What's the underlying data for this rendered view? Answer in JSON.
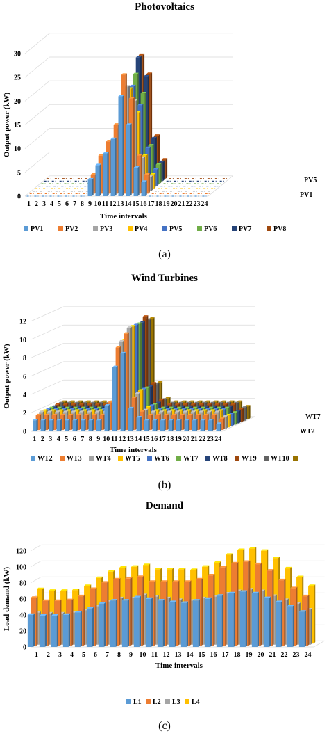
{
  "chart_data": [
    {
      "type": "bar",
      "subtype": "3d-clustered",
      "title": "Photovoltaics",
      "xlabel": "Time intervals",
      "ylabel": "Output power (kW)",
      "ylim": [
        0,
        30
      ],
      "yticks": [
        0,
        5,
        10,
        15,
        20,
        25,
        30
      ],
      "categories": [
        "1",
        "2",
        "3",
        "4",
        "5",
        "6",
        "7",
        "8",
        "9",
        "10",
        "11",
        "12",
        "13",
        "14",
        "15",
        "16",
        "17",
        "18",
        "19",
        "20",
        "21",
        "22",
        "23",
        "24"
      ],
      "depth_labels": [
        "PV5",
        "PV1"
      ],
      "caption": "(a)",
      "legend_position": "bottom",
      "series": [
        {
          "name": "PV1",
          "color": "#5b9bd5",
          "values": [
            0,
            0,
            0,
            0,
            0,
            0,
            0,
            0,
            3.5,
            6.5,
            9,
            12,
            21,
            15,
            6,
            3,
            0,
            0,
            0,
            0,
            0,
            0,
            0,
            0
          ]
        },
        {
          "name": "PV2",
          "color": "#ed7d31",
          "values": [
            0,
            0,
            0,
            0,
            0,
            0,
            0,
            0,
            4,
            8,
            11,
            14.5,
            25,
            20,
            8,
            4,
            0,
            0,
            0,
            0,
            0,
            0,
            0,
            0
          ]
        },
        {
          "name": "PV3",
          "color": "#a5a5a5",
          "values": [
            0,
            0,
            0,
            0,
            0,
            0,
            0,
            0,
            3,
            7,
            10,
            13,
            22,
            19,
            7,
            3,
            0,
            0,
            0,
            0,
            0,
            0,
            0,
            0
          ]
        },
        {
          "name": "PV4",
          "color": "#ffc000",
          "values": [
            0,
            0,
            0,
            0,
            0,
            0,
            0,
            0,
            3,
            6,
            9,
            12,
            21,
            16,
            7,
            3,
            0,
            0,
            0,
            0,
            0,
            0,
            0,
            0
          ]
        },
        {
          "name": "PV5",
          "color": "#4472c4",
          "values": [
            0,
            0,
            0,
            0,
            0,
            0,
            0,
            0,
            3,
            7,
            10,
            13,
            21,
            17,
            8,
            3.5,
            0,
            0,
            0,
            0,
            0,
            0,
            0,
            0
          ]
        },
        {
          "name": "PV6",
          "color": "#70ad47",
          "values": [
            0,
            0,
            0,
            0,
            0,
            0,
            0,
            0,
            3.5,
            8,
            11,
            14,
            23,
            19,
            8,
            4,
            0,
            0,
            0,
            0,
            0,
            0,
            0,
            0
          ]
        },
        {
          "name": "PV7",
          "color": "#264478",
          "values": [
            0,
            0,
            0,
            0,
            0,
            0,
            0,
            0,
            4,
            9,
            12,
            16,
            26,
            22,
            9,
            4,
            0,
            0,
            0,
            0,
            0,
            0,
            0,
            0
          ]
        },
        {
          "name": "PV8",
          "color": "#9e480e",
          "values": [
            0,
            0,
            0,
            0,
            0,
            0,
            0,
            0,
            4,
            9,
            12,
            16,
            26,
            22,
            9,
            4,
            0,
            0,
            0,
            0,
            0,
            0,
            0,
            0
          ]
        }
      ]
    },
    {
      "type": "bar",
      "subtype": "3d-clustered",
      "title": "Wind Turbines",
      "xlabel": "Time intervals",
      "ylabel": "Output power (kW)",
      "ylim": [
        0,
        12
      ],
      "yticks": [
        0,
        2,
        4,
        6,
        8,
        10,
        12
      ],
      "categories": [
        "1",
        "2",
        "3",
        "4",
        "5",
        "6",
        "7",
        "8",
        "9",
        "10",
        "11",
        "12",
        "13",
        "14",
        "15",
        "16",
        "17",
        "18",
        "19",
        "20",
        "21",
        "22",
        "23",
        "24"
      ],
      "depth_labels": [
        "WT7",
        "WT2"
      ],
      "caption": "(b)",
      "legend_position": "bottom",
      "series": [
        {
          "name": "WT2",
          "color": "#5b9bd5",
          "values": [
            1.2,
            1.2,
            1.2,
            1.2,
            1.2,
            1.2,
            1.2,
            1.2,
            1.2,
            2.8,
            7,
            8.5,
            2.5,
            1.5,
            1.2,
            1.2,
            1.2,
            1.2,
            1.2,
            1.2,
            1.2,
            1.2,
            1.2,
            0.8
          ]
        },
        {
          "name": "WT3",
          "color": "#ed7d31",
          "values": [
            1.6,
            1.6,
            1.6,
            1.6,
            1.6,
            1.6,
            1.6,
            1.6,
            1.6,
            3,
            9,
            10.5,
            3.5,
            2,
            1.6,
            1.6,
            1.6,
            1.6,
            1.6,
            1.6,
            1.6,
            1.6,
            1.6,
            1.2
          ]
        },
        {
          "name": "WT4",
          "color": "#a5a5a5",
          "values": [
            1.8,
            1.8,
            1.8,
            1.8,
            1.8,
            1.8,
            1.8,
            1.8,
            1.8,
            3,
            9.5,
            11,
            3.8,
            2,
            1.8,
            1.8,
            1.8,
            1.8,
            1.8,
            1.8,
            1.8,
            1.8,
            1.8,
            1.3
          ]
        },
        {
          "name": "WT5",
          "color": "#ffc000",
          "values": [
            1.8,
            1.8,
            1.8,
            1.8,
            1.8,
            1.8,
            1.8,
            1.8,
            1.8,
            3,
            9.5,
            11,
            4,
            2.2,
            1.8,
            1.8,
            1.8,
            1.8,
            1.8,
            1.8,
            1.8,
            1.8,
            1.8,
            1.3
          ]
        },
        {
          "name": "WT6",
          "color": "#4472c4",
          "values": [
            1.8,
            1.8,
            1.8,
            1.8,
            1.8,
            1.8,
            1.8,
            1.8,
            1.8,
            3,
            9.5,
            11,
            4,
            2.2,
            1.8,
            1.8,
            1.8,
            1.8,
            1.8,
            1.8,
            1.8,
            1.8,
            1.8,
            1.3
          ]
        },
        {
          "name": "WT7",
          "color": "#70ad47",
          "values": [
            1.8,
            1.8,
            1.8,
            1.8,
            1.8,
            1.8,
            1.8,
            1.8,
            1.8,
            3,
            9.5,
            11,
            4,
            2.2,
            1.8,
            1.8,
            1.8,
            1.8,
            1.8,
            1.8,
            1.8,
            1.8,
            1.8,
            1.3
          ]
        },
        {
          "name": "WT8",
          "color": "#264478",
          "values": [
            1.8,
            1.8,
            1.8,
            1.8,
            1.8,
            1.8,
            1.8,
            1.8,
            1.8,
            3,
            9.5,
            11,
            4,
            2.2,
            1.8,
            1.8,
            1.8,
            1.8,
            1.8,
            1.8,
            1.8,
            1.8,
            1.8,
            1.3
          ]
        },
        {
          "name": "WT9",
          "color": "#9e480e",
          "values": [
            1.9,
            1.9,
            1.9,
            1.9,
            1.9,
            1.9,
            1.9,
            1.9,
            1.9,
            3,
            10,
            11.5,
            4.2,
            2.4,
            1.9,
            1.9,
            1.9,
            1.9,
            1.9,
            1.9,
            1.9,
            1.9,
            1.9,
            1.4
          ]
        },
        {
          "name": "WT10",
          "color": "#636363",
          "values": [
            1.9,
            1.9,
            1.9,
            1.9,
            1.9,
            1.9,
            1.9,
            1.9,
            1.9,
            3,
            10,
            11,
            4,
            2.3,
            1.9,
            1.9,
            1.9,
            1.9,
            1.9,
            1.9,
            1.9,
            1.9,
            1.9,
            1.4
          ]
        },
        {
          "name": "",
          "color": "#997300",
          "values": [
            1.9,
            1.9,
            1.9,
            1.9,
            1.9,
            1.9,
            1.9,
            1.9,
            1.9,
            3,
            10,
            11,
            4,
            2.3,
            1.9,
            1.9,
            1.9,
            1.9,
            1.9,
            1.9,
            1.9,
            1.9,
            1.9,
            1.4
          ]
        }
      ]
    },
    {
      "type": "bar",
      "subtype": "3d-clustered",
      "title": "Demand",
      "xlabel": "Time intervals",
      "ylabel": "Load demand (kW)",
      "ylim": [
        0,
        120
      ],
      "yticks": [
        0,
        20,
        40,
        60,
        80,
        100,
        120
      ],
      "categories": [
        "1",
        "2",
        "3",
        "4",
        "5",
        "6",
        "7",
        "8",
        "9",
        "10",
        "11",
        "12",
        "13",
        "14",
        "15",
        "16",
        "17",
        "18",
        "19",
        "20",
        "21",
        "22",
        "23",
        "24"
      ],
      "caption": "(c)",
      "legend_position": "bottom",
      "series": [
        {
          "name": "L1",
          "color": "#5b9bd5",
          "values": [
            40,
            39,
            39,
            40,
            43,
            48,
            54,
            58,
            58,
            62,
            60,
            58,
            56,
            55,
            58,
            60,
            64,
            67,
            69,
            67,
            61,
            56,
            51,
            44
          ]
        },
        {
          "name": "L2",
          "color": "#ed7d31",
          "values": [
            60,
            56,
            56,
            57,
            62,
            71,
            79,
            83,
            84,
            86,
            80,
            80,
            80,
            80,
            83,
            88,
            98,
            103,
            105,
            102,
            94,
            82,
            72,
            62
          ]
        },
        {
          "name": "L3",
          "color": "#a5a5a5",
          "values": [
            40,
            39,
            39,
            40,
            43,
            48,
            54,
            58,
            58,
            62,
            60,
            58,
            56,
            55,
            58,
            60,
            64,
            67,
            69,
            67,
            61,
            56,
            51,
            44
          ]
        },
        {
          "name": "L4",
          "color": "#ffc000",
          "values": [
            68,
            66,
            66,
            67,
            72,
            82,
            90,
            95,
            96,
            98,
            93,
            93,
            93,
            92,
            96,
            101,
            111,
            117,
            119,
            116,
            107,
            94,
            83,
            72
          ]
        }
      ]
    }
  ]
}
